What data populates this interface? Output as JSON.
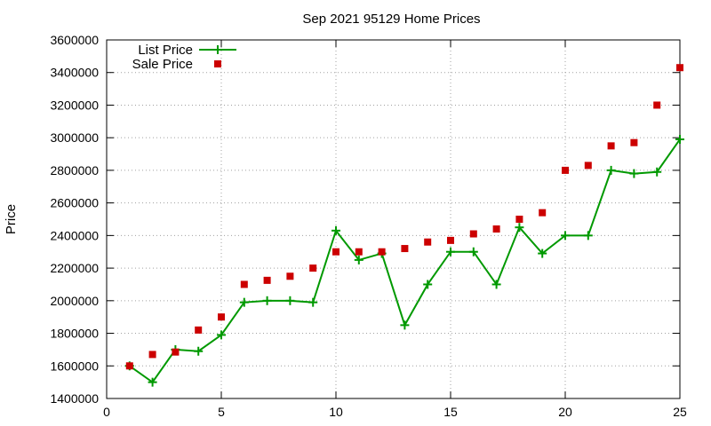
{
  "chart_data": {
    "type": "line",
    "title": "Sep 2021 95129 Home Prices",
    "xlabel": "",
    "ylabel": "Price",
    "xlim": [
      0,
      25
    ],
    "ylim": [
      1400000,
      3600000
    ],
    "x_ticks": [
      0,
      5,
      10,
      15,
      20,
      25
    ],
    "y_ticks": [
      1400000,
      1600000,
      1800000,
      2000000,
      2200000,
      2400000,
      2600000,
      2800000,
      3000000,
      3200000,
      3400000,
      3600000
    ],
    "grid": true,
    "legend_position": "top-left",
    "series": [
      {
        "name": "List Price",
        "style": "line-with-plus-markers",
        "color": "#009900",
        "x": [
          1,
          2,
          3,
          4,
          5,
          6,
          7,
          8,
          9,
          10,
          11,
          12,
          13,
          14,
          15,
          16,
          17,
          18,
          19,
          20,
          21,
          22,
          23,
          24,
          25
        ],
        "values": [
          1600000,
          1500000,
          1700000,
          1690000,
          1790000,
          1990000,
          2000000,
          2000000,
          1990000,
          2430000,
          2250000,
          2290000,
          1850000,
          2100000,
          2300000,
          2300000,
          2100000,
          2450000,
          2290000,
          2400000,
          2400000,
          2800000,
          2780000,
          2790000,
          2990000
        ]
      },
      {
        "name": "Sale Price",
        "style": "square-markers",
        "color": "#cc0000",
        "x": [
          1,
          2,
          3,
          4,
          5,
          6,
          7,
          8,
          9,
          10,
          11,
          12,
          13,
          14,
          15,
          16,
          17,
          18,
          19,
          20,
          21,
          22,
          23,
          24,
          25
        ],
        "values": [
          1600000,
          1670000,
          1685000,
          1820000,
          1900000,
          2100000,
          2125000,
          2150000,
          2200000,
          2300000,
          2300000,
          2300000,
          2320000,
          2360000,
          2370000,
          2410000,
          2440000,
          2500000,
          2540000,
          2800000,
          2830000,
          2950000,
          2970000,
          3200000,
          3430000
        ]
      }
    ]
  }
}
